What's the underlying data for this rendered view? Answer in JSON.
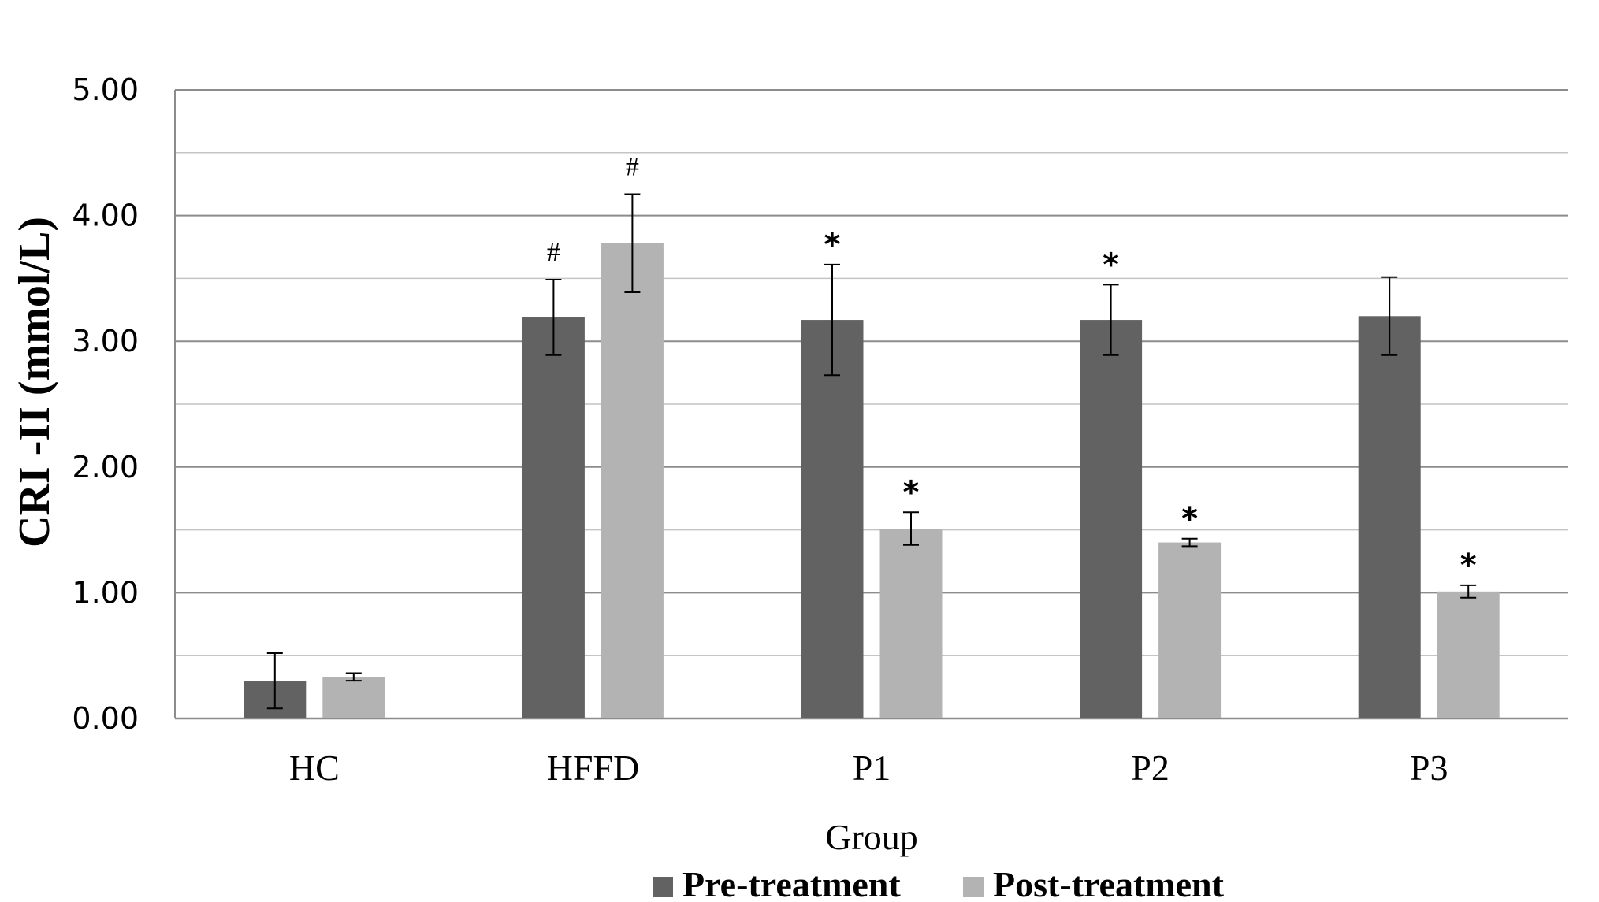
{
  "chart_data": {
    "type": "bar",
    "title": "",
    "xlabel": "Group",
    "ylabel": "CRI  -II (mmol/L)",
    "ylim": [
      0,
      5
    ],
    "y_major_ticks": [
      "0.00",
      "1.00",
      "2.00",
      "3.00",
      "4.00",
      "5.00"
    ],
    "y_minor_step": 0.5,
    "grid": true,
    "legend_position": "bottom",
    "categories": [
      "HC",
      "HFFD",
      "P1",
      "P2",
      "P3"
    ],
    "series": [
      {
        "name": "Pre-treatment",
        "color": "#626262",
        "values": [
          0.3,
          3.19,
          3.17,
          3.17,
          3.2
        ],
        "errors": [
          0.22,
          0.3,
          0.44,
          0.28,
          0.31
        ],
        "annotations": [
          "",
          "#",
          "*",
          "*",
          ""
        ]
      },
      {
        "name": "Post-treatment",
        "color": "#b3b3b3",
        "values": [
          0.33,
          3.78,
          1.51,
          1.4,
          1.01
        ],
        "errors": [
          0.03,
          0.39,
          0.13,
          0.03,
          0.05
        ],
        "annotations": [
          "",
          "#",
          "*",
          "*",
          "*"
        ]
      }
    ]
  }
}
